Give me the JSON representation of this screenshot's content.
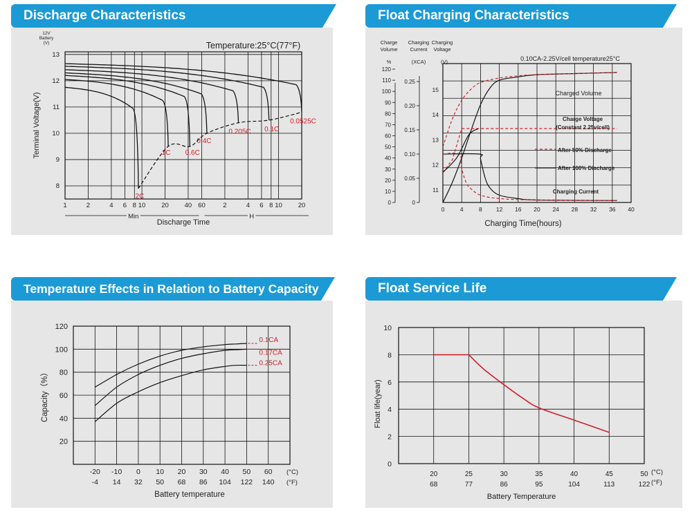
{
  "panels": {
    "discharge": {
      "title": "Discharge Characteristics"
    },
    "float_charging": {
      "title": "Float Charging Characteristics"
    },
    "temperature": {
      "title": "Temperature Effects in Relation to Battery Capacity"
    },
    "service_life": {
      "title": "Float Service Life"
    }
  },
  "colors": {
    "banner": "#1b9ad6",
    "chart_bg": "#e6e6e6",
    "red": "#d0202a",
    "curve": "#111111"
  },
  "chart_data": [
    {
      "id": "discharge",
      "type": "line",
      "title": "Discharge Characteristics",
      "annotation": "Temperature:25°C(77°F)",
      "ylabel": "Terminal Voltage(V)",
      "ytop_label": [
        "12V",
        "Battery",
        "(V)"
      ],
      "xlabel": "Discharge Time",
      "ylim": [
        7.5,
        13.1
      ],
      "yticks": [
        "8",
        "9",
        "10",
        "11",
        "12",
        "13"
      ],
      "xticks": [
        "1",
        "2",
        "4",
        "6",
        "8",
        "10",
        "20",
        "40",
        "60",
        "2",
        "4",
        "6",
        "8",
        "10",
        "20"
      ],
      "xunits": [
        "Min",
        "H"
      ],
      "series": [
        {
          "name": "2C",
          "end_min": 9,
          "start_v": 11.75
        },
        {
          "name": "1C",
          "end_min": 22,
          "start_v": 12.05
        },
        {
          "name": "0.6C",
          "end_min": 42,
          "start_v": 12.2
        },
        {
          "name": "0.4C",
          "end_min": 70,
          "start_v": 12.3
        },
        {
          "name": "0.205C",
          "end_min": 180,
          "start_v": 12.42
        },
        {
          "name": "0.1C",
          "end_min": 450,
          "start_v": 12.55
        },
        {
          "name": "0.0525C",
          "end_min": 1200,
          "start_v": 12.65
        }
      ],
      "endpoint_line_v": [
        7.9,
        9.5,
        9.5,
        10.0,
        10.4,
        10.5,
        10.8
      ]
    },
    {
      "id": "float_charging",
      "type": "line",
      "title": "Float Charging Characteristics",
      "annotation": "0.10CA-2.25V/cell  temperature25°C",
      "xlabel": "Charging Time(hours)",
      "axis_headers": {
        "volume": [
          "Charge",
          "Volume",
          "%"
        ],
        "current": [
          "Charging",
          "Current",
          "(XCA)"
        ],
        "voltage": [
          "Charging",
          "Voltage",
          "(V)"
        ]
      },
      "xticks": [
        "0",
        "4",
        "8",
        "12",
        "16",
        "20",
        "24",
        "28",
        "32",
        "36",
        "40"
      ],
      "volume_ticks": [
        "0",
        "10",
        "20",
        "30",
        "40",
        "50",
        "60",
        "70",
        "80",
        "90",
        "100",
        "110",
        "120"
      ],
      "current_ticks": [
        "0",
        "0.05",
        "0.10",
        "0.15",
        "0.20",
        "0.25"
      ],
      "voltage_ticks": [
        "11",
        "12",
        "13",
        "14",
        "15"
      ],
      "labels": {
        "charged_volume": "Charged Volume",
        "charge_voltage_1": "Charge Voltage",
        "charge_voltage_2": "(Constant 2.25v/cell)",
        "after50": "After 50% Discharge",
        "after100": "After 100% Discharge",
        "charging_current": "Charging Current"
      },
      "series": [
        {
          "name": "Charged Volume (100% discharge)",
          "style": "solid",
          "x": [
            0,
            2,
            4,
            6,
            8,
            10,
            12,
            16,
            20,
            28,
            37
          ],
          "y": [
            0,
            18,
            40,
            65,
            88,
            103,
            110,
            113,
            115,
            116,
            117
          ]
        },
        {
          "name": "Charged Volume (50% discharge)",
          "style": "dashed",
          "x": [
            0,
            2,
            4,
            6,
            8,
            12,
            16,
            20,
            28,
            37
          ],
          "y": [
            50,
            75,
            92,
            102,
            108,
            112,
            114,
            115,
            116,
            117
          ]
        },
        {
          "name": "Charge Voltage",
          "style": "dashed",
          "x": [
            0,
            2,
            4,
            37
          ],
          "y": [
            11.7,
            12.2,
            13.45,
            13.45
          ]
        },
        {
          "name": "Charging Current (100% discharge)",
          "style": "solid",
          "x": [
            0,
            7.8,
            8,
            9,
            10,
            12,
            16,
            20,
            37
          ],
          "y": [
            0.1,
            0.1,
            0.09,
            0.05,
            0.03,
            0.015,
            0.008,
            0.005,
            0.004
          ]
        },
        {
          "name": "Charging Current (50% discharge)",
          "style": "dashed",
          "x": [
            0,
            3.5,
            4,
            5,
            6,
            8,
            12,
            20,
            37
          ],
          "y": [
            0.1,
            0.1,
            0.07,
            0.04,
            0.028,
            0.015,
            0.008,
            0.005,
            0.004
          ]
        }
      ]
    },
    {
      "id": "temperature",
      "type": "line",
      "title": "Temperature Effects in Relation to Battery Capacity",
      "ylabel": "Capacity（%）",
      "xlabel": "Battery temperature",
      "ylim": [
        0,
        120
      ],
      "yticks": [
        "20",
        "40",
        "60",
        "80",
        "100",
        "120"
      ],
      "x_c": [
        "-20",
        "-10",
        "0",
        "10",
        "20",
        "30",
        "40",
        "50",
        "60"
      ],
      "x_f": [
        "-4",
        "14",
        "32",
        "50",
        "68",
        "86",
        "104",
        "122",
        "140"
      ],
      "unit_c": "(°C)",
      "unit_f": "(°F)",
      "series": [
        {
          "name": "0.1CA",
          "x": [
            -20,
            -10,
            0,
            10,
            20,
            30,
            40,
            45,
            50
          ],
          "y": [
            67,
            78,
            87,
            94,
            99,
            102,
            104,
            104.5,
            105
          ]
        },
        {
          "name": "0.17CA",
          "x": [
            -20,
            -10,
            0,
            10,
            20,
            30,
            40,
            45,
            50
          ],
          "y": [
            51,
            67,
            78,
            86,
            92,
            96,
            99,
            99.5,
            100
          ]
        },
        {
          "name": "0.25CA",
          "x": [
            -20,
            -10,
            0,
            10,
            20,
            30,
            40,
            45,
            50
          ],
          "y": [
            37,
            53,
            63,
            71,
            77,
            82,
            85,
            86,
            86
          ]
        }
      ]
    },
    {
      "id": "service_life",
      "type": "line",
      "title": "Float Service Life",
      "ylabel": "Float life(year)",
      "xlabel": "Battery Temperature",
      "ylim": [
        0,
        10
      ],
      "yticks": [
        "0",
        "2",
        "4",
        "6",
        "8",
        "10"
      ],
      "x_c": [
        "20",
        "25",
        "30",
        "35",
        "40",
        "45",
        "50"
      ],
      "x_f": [
        "68",
        "77",
        "86",
        "95",
        "104",
        "113",
        "122"
      ],
      "unit_c": "(°C)",
      "unit_f": "(°F)",
      "series": [
        {
          "name": "Float life",
          "x": [
            20,
            25,
            27,
            30,
            33,
            35,
            40,
            45
          ],
          "y": [
            8,
            8,
            7,
            5.8,
            4.7,
            4.1,
            3.2,
            2.3
          ]
        }
      ]
    }
  ]
}
